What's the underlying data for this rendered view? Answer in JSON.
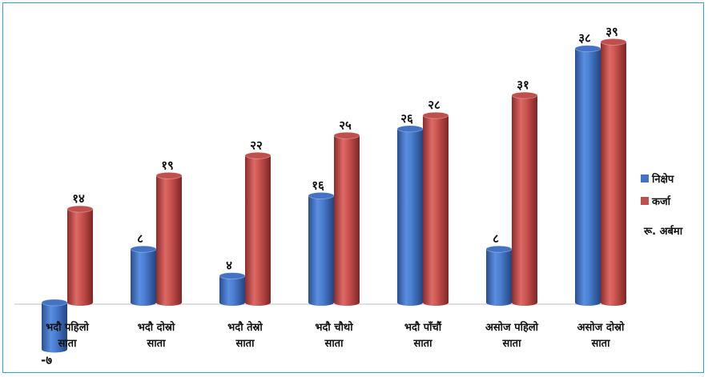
{
  "chart_data": {
    "type": "bar",
    "style": "3d-cylinder",
    "categories": [
      [
        "भदौ पहिलो",
        "साता"
      ],
      [
        "भदौ दोस्रो",
        "साता"
      ],
      [
        "भदौ तेस्रो",
        "साता"
      ],
      [
        "भदौ चौथो",
        "साता"
      ],
      [
        "भदौ पाँचौं",
        "साता"
      ],
      [
        "असोज पहिलो",
        "साता"
      ],
      [
        "असोज दोस्रो",
        "साता"
      ]
    ],
    "series": [
      {
        "name": "निक्षेप",
        "color": "#4472c4",
        "values": [
          -7,
          8,
          4,
          16,
          26,
          8,
          38
        ],
        "labels": [
          "-७",
          "८",
          "४",
          "१६",
          "२६",
          "८",
          "३८"
        ]
      },
      {
        "name": "कर्जा",
        "color": "#c0504d",
        "values": [
          14,
          19,
          22,
          25,
          28,
          31,
          39
        ],
        "labels": [
          "१४",
          "१९",
          "२२",
          "२५",
          "२८",
          "३१",
          "३९"
        ]
      }
    ],
    "unit_note": "रू. अर्बमा",
    "ylim": [
      -7,
      39
    ],
    "grid": false,
    "legend_position": "right"
  }
}
